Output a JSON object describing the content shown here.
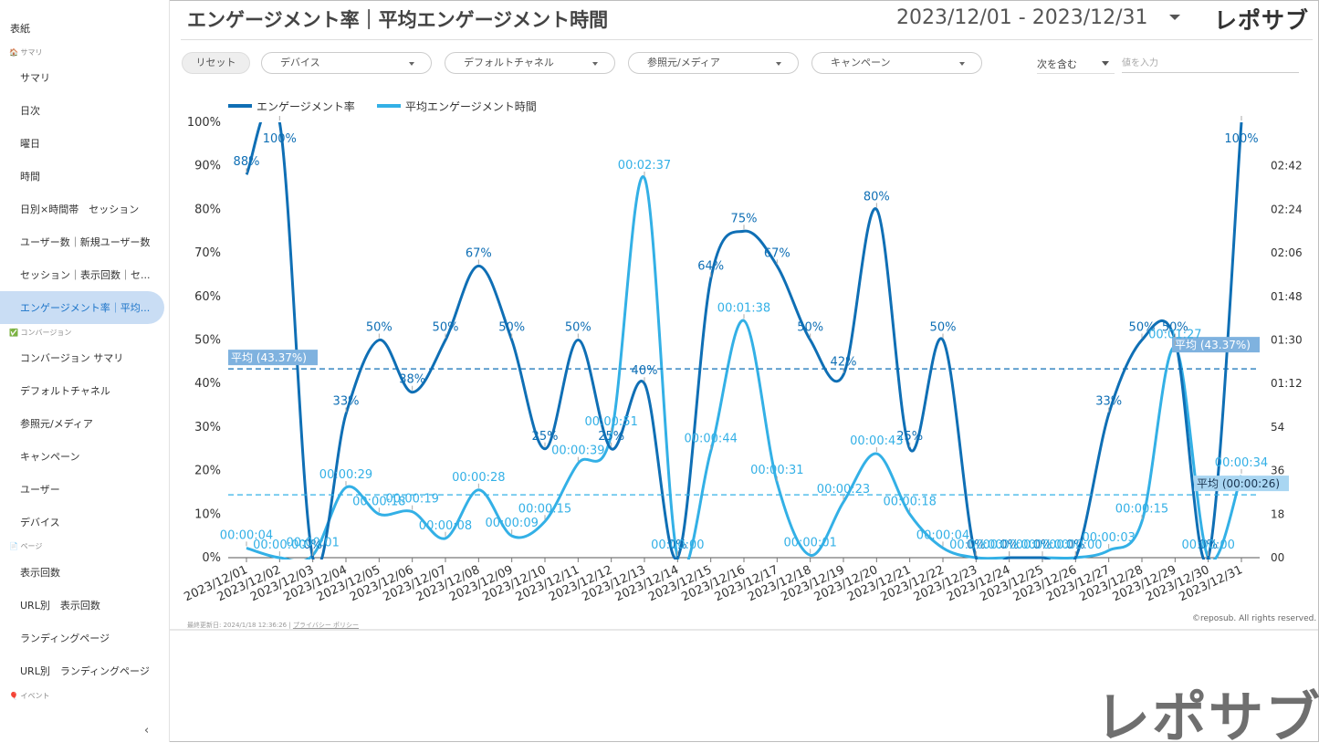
{
  "sidebar": {
    "cover": "表紙",
    "sections": [
      {
        "label": "🏠 サマリ",
        "items": [
          "サマリ",
          "日次",
          "曜日",
          "時間",
          "日別×時間帯　セッション",
          "ユーザー数｜新規ユーザー数",
          "セッション｜表示回数｜セ...",
          "エンゲージメント率｜平均..."
        ]
      },
      {
        "label": "✅ コンバージョン",
        "items": [
          "コンバージョン サマリ",
          "デフォルトチャネル",
          "参照元/メディア",
          "キャンペーン",
          "ユーザー",
          "デバイス"
        ]
      },
      {
        "label": "📄 ページ",
        "items": [
          "表示回数",
          "URL別　表示回数",
          "ランディングページ",
          "URL別　ランディングページ"
        ]
      },
      {
        "label": "🎈 イベント",
        "items": []
      }
    ],
    "active_item": "エンゲージメント率｜平均...",
    "collapse_glyph": "‹"
  },
  "header": {
    "title": "エンゲージメント率｜平均エンゲージメント時間",
    "date_range": "2023/12/01 - 2023/12/31",
    "logo": "レポサブ"
  },
  "filters": {
    "reset": "リセット",
    "dropdowns": [
      "デバイス",
      "デフォルトチャネル",
      "参照元/メディア",
      "キャンペーン"
    ],
    "condition": "次を含む",
    "value_placeholder": "値を入力"
  },
  "footer": {
    "updated": "最終更新日: 2024/1/18 12:36:26",
    "privacy": "プライバシー ポリシー",
    "copyright": "©reposub. All rights reserved.",
    "big_logo": "レポサブ"
  },
  "colors": {
    "engagement_rate": "#0f6fb5",
    "avg_time": "#33b0e6",
    "avg_rate_label_bg": "#7fb2df",
    "avg_time_label_bg": "#a9d6f2"
  },
  "chart_data": {
    "type": "line",
    "categories": [
      "2023/12/01",
      "2023/12/02",
      "2023/12/03",
      "2023/12/04",
      "2023/12/05",
      "2023/12/06",
      "2023/12/07",
      "2023/12/08",
      "2023/12/09",
      "2023/12/10",
      "2023/12/11",
      "2023/12/12",
      "2023/12/13",
      "2023/12/14",
      "2023/12/15",
      "2023/12/16",
      "2023/12/17",
      "2023/12/18",
      "2023/12/19",
      "2023/12/20",
      "2023/12/21",
      "2023/12/22",
      "2023/12/23",
      "2023/12/24",
      "2023/12/25",
      "2023/12/26",
      "2023/12/27",
      "2023/12/28",
      "2023/12/29",
      "2023/12/30",
      "2023/12/31"
    ],
    "series": [
      {
        "name": "エンゲージメント率",
        "axis": "left",
        "values": [
          88,
          100,
          0,
          33,
          50,
          38,
          50,
          67,
          50,
          25,
          50,
          25,
          40,
          0,
          64,
          75,
          67,
          50,
          42,
          80,
          25,
          50,
          0,
          0,
          0,
          0,
          33,
          50,
          50,
          0,
          100
        ],
        "labels": [
          "88%",
          "100%",
          "0%",
          "33%",
          "50%",
          "38%",
          "50%",
          "67%",
          "50%",
          "25%",
          "50%",
          "25%",
          "40%",
          "0%",
          "64%",
          "75%",
          "67%",
          "50%",
          "42%",
          "80%",
          "25%",
          "50%",
          "0%",
          "0%",
          "0%",
          "0%",
          "33%",
          "50%",
          "50%",
          "0%",
          "100%"
        ]
      },
      {
        "name": "平均エンゲージメント時間",
        "axis": "right",
        "values": [
          4,
          0,
          1,
          29,
          18,
          19,
          8,
          28,
          9,
          15,
          39,
          51,
          157,
          0,
          44,
          98,
          31,
          1,
          23,
          43,
          18,
          4,
          0,
          0,
          0,
          0,
          3,
          15,
          87,
          0,
          34
        ],
        "labels": [
          "00:00:04",
          "00:00:00",
          "00:00:01",
          "00:00:29",
          "00:00:18",
          "00:00:19",
          "00:00:08",
          "00:00:28",
          "00:00:09",
          "00:00:15",
          "00:00:39",
          "00:00:51",
          "00:02:37",
          "00:00:00",
          "00:00:44",
          "00:01:38",
          "00:00:31",
          "00:00:01",
          "00:00:23",
          "00:00:43",
          "00:00:18",
          "00:00:04",
          "00:00:00",
          "00:00:00",
          "00:00:00",
          "00:00:00",
          "00:00:03",
          "00:00:15",
          "00:01:27",
          "00:00:00",
          "00:00:34"
        ]
      }
    ],
    "left_axis": {
      "ylim": [
        0,
        100
      ],
      "ticks": [
        "0%",
        "10%",
        "20%",
        "30%",
        "40%",
        "50%",
        "60%",
        "70%",
        "80%",
        "90%",
        "100%"
      ]
    },
    "right_axis": {
      "ylim": [
        0,
        180
      ],
      "tick_values": [
        0,
        18,
        36,
        54,
        72,
        90,
        108,
        126,
        144,
        162
      ],
      "ticks": [
        "00",
        "18",
        "36",
        "54",
        "01:12",
        "01:30",
        "01:48",
        "02:06",
        "02:24",
        "02:42"
      ]
    },
    "reference_lines": [
      {
        "axis": "left",
        "value": 43.37,
        "label": "平均 (43.37%)"
      },
      {
        "axis": "right",
        "value": 26,
        "label": "平均 (00:00:26)"
      }
    ],
    "legend_position": "top-left",
    "grid": false
  }
}
